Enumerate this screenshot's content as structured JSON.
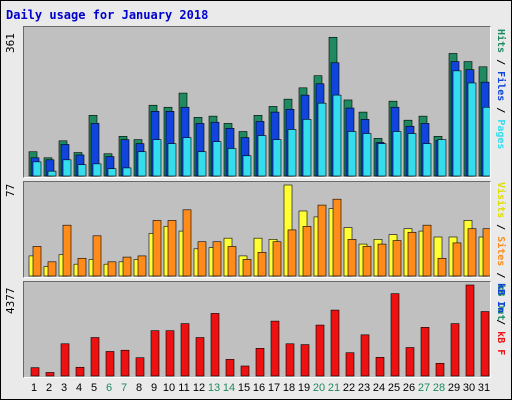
{
  "title": "Daily usage for January 2018",
  "colors": {
    "hits": "#1f8a60",
    "files": "#1144dd",
    "pages": "#33ddee",
    "visits": "#ffff33",
    "sites": "#ff8c1a",
    "kbytes": "#ee1111",
    "title": "#0000cc",
    "weekend_day": "#1f8a60",
    "weekday_day": "#000000"
  },
  "legend": {
    "top": {
      "pages": "Pages",
      "sep1": " / ",
      "files": "Files",
      "sep2": " / ",
      "hits": "Hits"
    },
    "mid": {
      "visits": "Visits",
      "sep1": " / ",
      "sites": "Sites",
      "sep2": " / ",
      "kbout": "kB Out"
    },
    "bot": {
      "kbin": "kB In",
      "sep1": " / ",
      "kbf": "kB F"
    }
  },
  "chart_data": [
    {
      "type": "bar",
      "name": "hits-files-pages",
      "max_label": "361",
      "ylim": [
        0,
        361
      ],
      "categories": [
        "1",
        "2",
        "3",
        "4",
        "5",
        "6",
        "7",
        "8",
        "9",
        "10",
        "11",
        "12",
        "13",
        "14",
        "15",
        "16",
        "17",
        "18",
        "19",
        "20",
        "21",
        "22",
        "23",
        "24",
        "25",
        "26",
        "27",
        "28",
        "29",
        "30",
        "31"
      ],
      "weekend_days": [
        "6",
        "7",
        "13",
        "14",
        "20",
        "21",
        "27",
        "28"
      ],
      "series": [
        {
          "name": "Hits",
          "values": [
            60,
            45,
            87,
            58,
            150,
            55,
            98,
            90,
            175,
            170,
            205,
            145,
            148,
            130,
            110,
            150,
            172,
            190,
            218,
            248,
            343,
            188,
            158,
            93,
            185,
            138,
            148,
            98,
            303,
            283,
            270
          ]
        },
        {
          "name": "Files",
          "values": [
            45,
            40,
            78,
            52,
            130,
            48,
            90,
            80,
            160,
            160,
            170,
            130,
            133,
            118,
            95,
            135,
            158,
            165,
            200,
            228,
            280,
            168,
            140,
            83,
            170,
            123,
            130,
            88,
            283,
            263,
            232
          ]
        },
        {
          "name": "Pages",
          "values": [
            35,
            12,
            40,
            28,
            30,
            18,
            20,
            60,
            90,
            80,
            95,
            60,
            85,
            68,
            50,
            100,
            90,
            115,
            140,
            180,
            200,
            110,
            105,
            80,
            110,
            105,
            80,
            90,
            260,
            230,
            170
          ]
        }
      ]
    },
    {
      "type": "bar",
      "name": "visits-sites",
      "max_label": "77",
      "ylim": [
        0,
        77
      ],
      "categories": [
        "1",
        "2",
        "3",
        "4",
        "5",
        "6",
        "7",
        "8",
        "9",
        "10",
        "11",
        "12",
        "13",
        "14",
        "15",
        "16",
        "17",
        "18",
        "19",
        "20",
        "21",
        "22",
        "23",
        "24",
        "25",
        "26",
        "27",
        "28",
        "29",
        "30",
        "31"
      ],
      "series": [
        {
          "name": "Visits",
          "values": [
            17,
            8,
            18,
            10,
            14,
            10,
            12,
            14,
            36,
            42,
            38,
            23,
            24,
            32,
            17,
            32,
            31,
            77,
            55,
            50,
            57,
            41,
            27,
            31,
            35,
            40,
            38,
            33,
            33,
            47,
            33
          ]
        },
        {
          "name": "Sites",
          "values": [
            25,
            12,
            43,
            15,
            34,
            12,
            16,
            17,
            47,
            47,
            56,
            29,
            29,
            25,
            14,
            20,
            29,
            39,
            42,
            60,
            65,
            31,
            25,
            27,
            30,
            37,
            43,
            15,
            28,
            40,
            40
          ]
        }
      ]
    },
    {
      "type": "bar",
      "name": "kbytes",
      "max_label": "4377",
      "ylim": [
        0,
        4377
      ],
      "categories": [
        "1",
        "2",
        "3",
        "4",
        "5",
        "6",
        "7",
        "8",
        "9",
        "10",
        "11",
        "12",
        "13",
        "14",
        "15",
        "16",
        "17",
        "18",
        "19",
        "20",
        "21",
        "22",
        "23",
        "24",
        "25",
        "26",
        "27",
        "28",
        "29",
        "30",
        "31"
      ],
      "series": [
        {
          "name": "kB F",
          "values": [
            400,
            170,
            1550,
            420,
            1850,
            1180,
            1240,
            880,
            2180,
            2180,
            2520,
            1850,
            3010,
            800,
            480,
            1330,
            2640,
            1550,
            1510,
            2450,
            3170,
            1120,
            1980,
            900,
            3960,
            1370,
            2340,
            610,
            2520,
            4377,
            3100
          ]
        }
      ]
    }
  ]
}
